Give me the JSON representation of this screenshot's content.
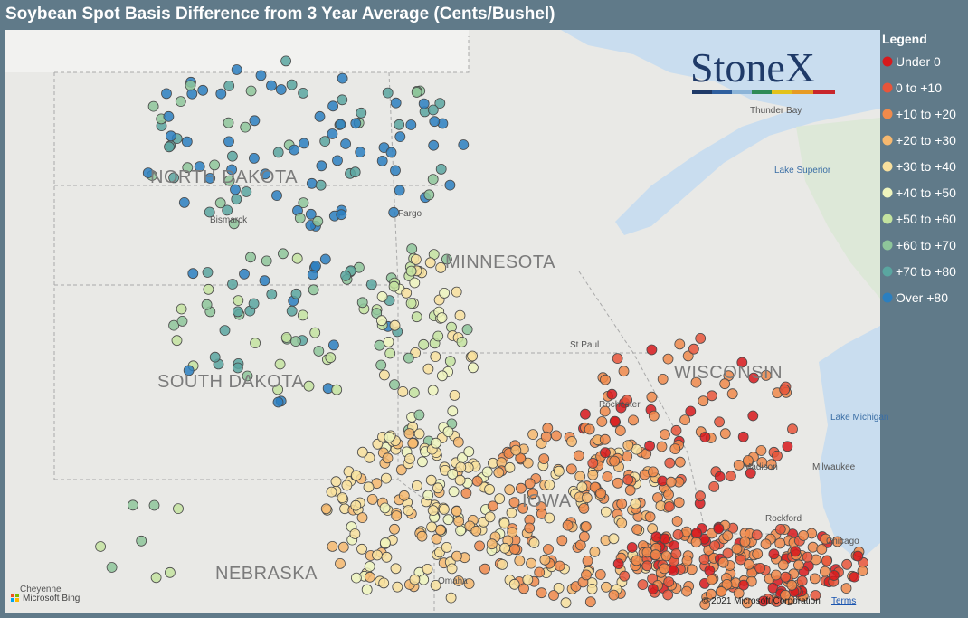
{
  "header": {
    "title": "Soybean Spot Basis Difference from 3 Year Average (Cents/Bushel)"
  },
  "legend": {
    "title": "Legend",
    "items": [
      {
        "label": "Under 0",
        "color": "#d7191c"
      },
      {
        "label": "0 to +10",
        "color": "#e8553a"
      },
      {
        "label": "+10 to +20",
        "color": "#f08a4b"
      },
      {
        "label": "+20 to +30",
        "color": "#f6b86f"
      },
      {
        "label": "+30 to +40",
        "color": "#f8e09e"
      },
      {
        "label": "+40 to +50",
        "color": "#eef4bd"
      },
      {
        "label": "+50 to +60",
        "color": "#c4e3a0"
      },
      {
        "label": "+60 to +70",
        "color": "#8ec69a"
      },
      {
        "label": "+70 to +80",
        "color": "#5aa6a0"
      },
      {
        "label": "Over +80",
        "color": "#2b7fc0"
      }
    ]
  },
  "map": {
    "labels": {
      "north_dakota": "NORTH DAKOTA",
      "south_dakota": "SOUTH DAKOTA",
      "minnesota": "MINNESOTA",
      "wisconsin": "WISCONSIN",
      "iowa": "IOWA",
      "nebraska": "NEBRASKA",
      "bismarck": "Bismarck",
      "fargo": "Fargo",
      "thunder_bay": "Thunder Bay",
      "lake_superior": "Lake Superior",
      "st_paul": "St Paul",
      "rochester": "Rochester",
      "lake_michigan": "Lake Michigan",
      "madison": "Madison",
      "milwaukee": "Milwaukee",
      "rockford": "Rockford",
      "chicago": "Chicago",
      "omaha": "Omaha",
      "cheyenne": "Cheyenne"
    }
  },
  "logo": "StoneX",
  "attribution": {
    "provider": "Microsoft Bing",
    "copyright": "© 2021 Microsoft Corporation",
    "terms": "Terms"
  }
}
